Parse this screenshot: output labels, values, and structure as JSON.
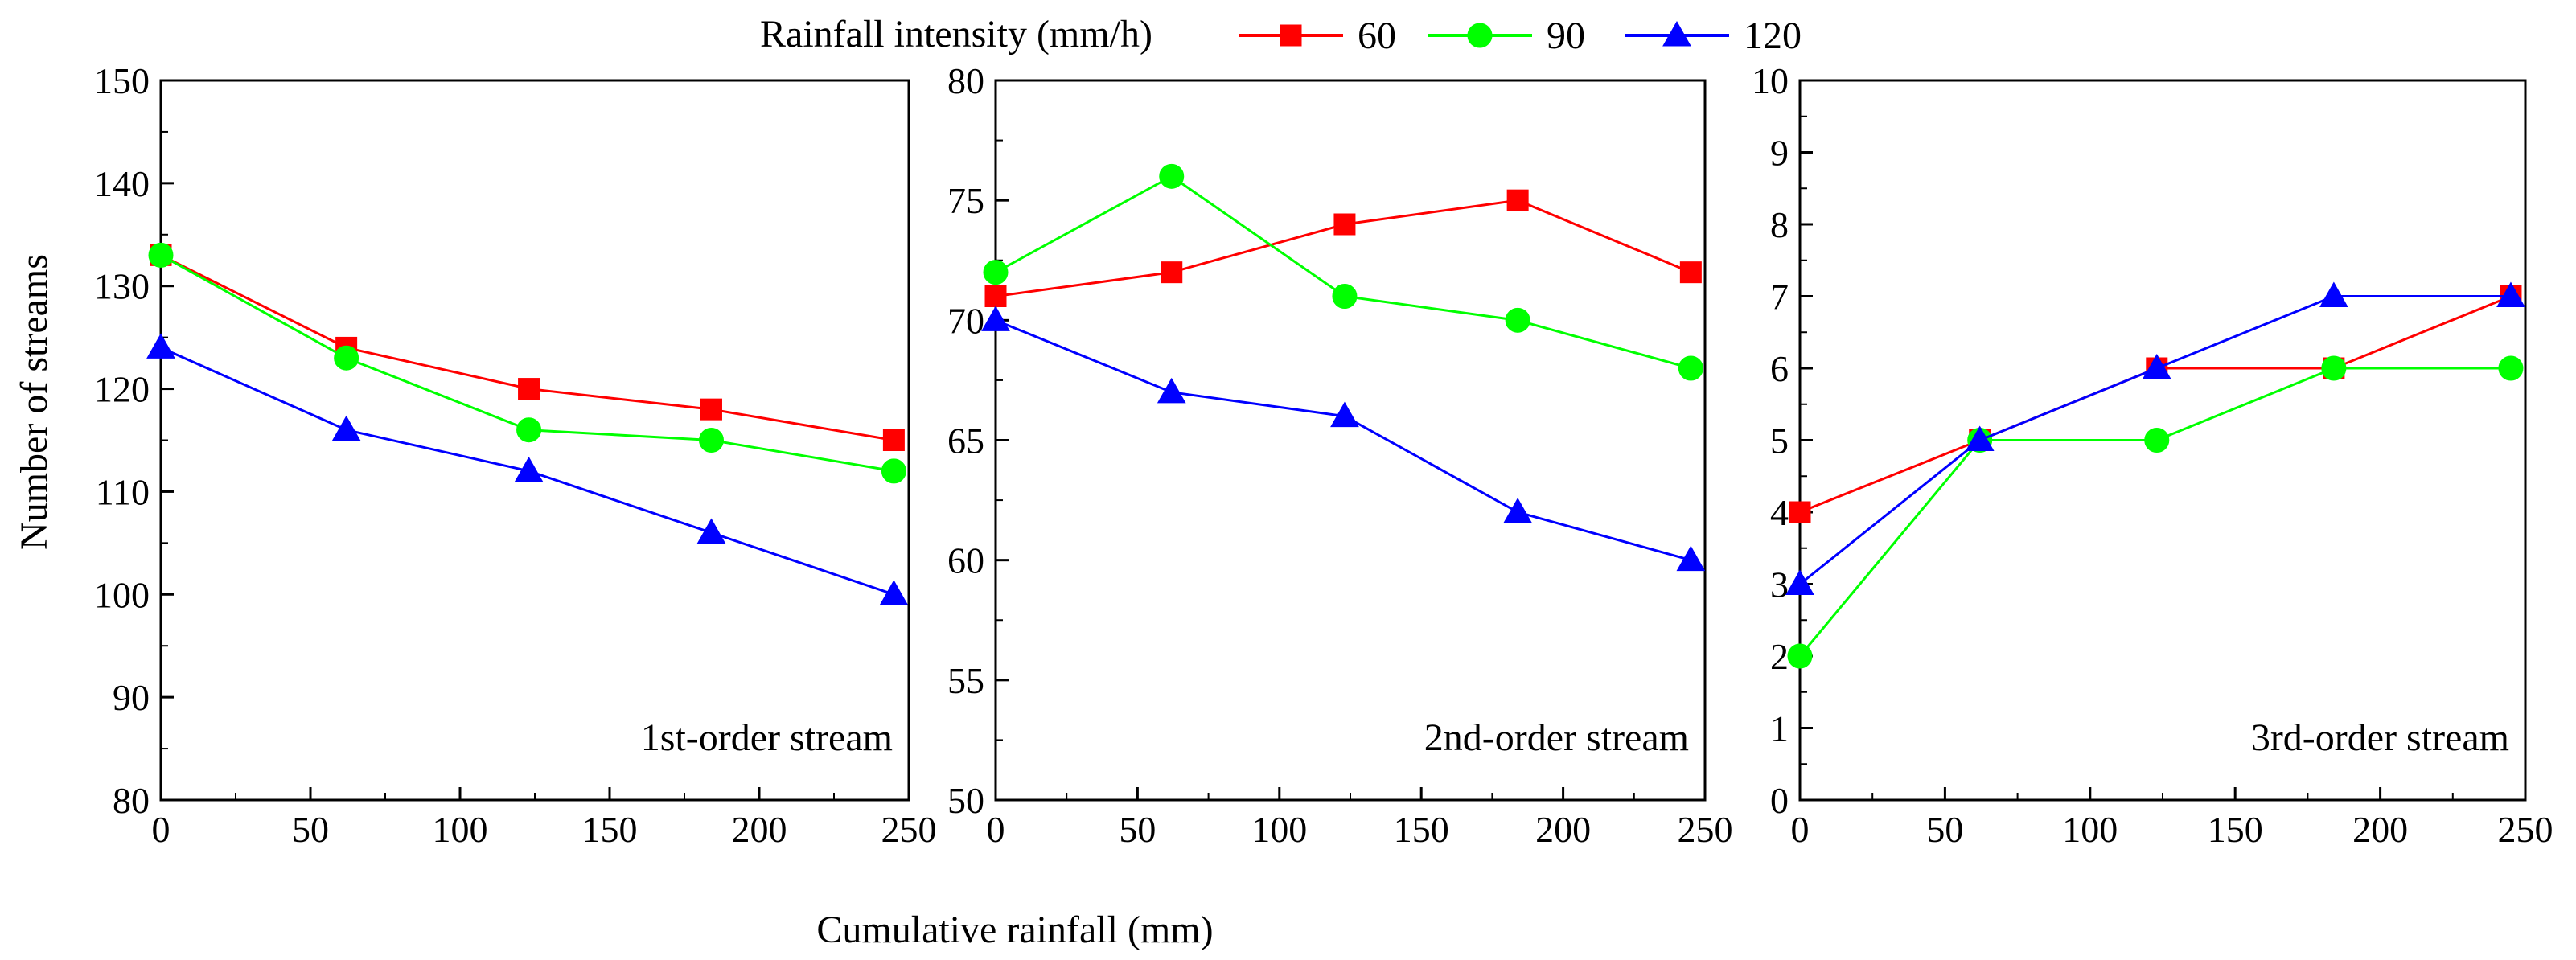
{
  "figure": {
    "shared_ylabel": "Number of streams",
    "shared_xlabel": "Cumulative rainfall (mm)",
    "legend_title": "Rainfall intensity (mm/h)"
  },
  "series_style": [
    {
      "name": "60",
      "color": "#ff0000",
      "marker": "square"
    },
    {
      "name": "90",
      "color": "#00ff00",
      "marker": "circle"
    },
    {
      "name": "120",
      "color": "#0000ff",
      "marker": "triangle"
    }
  ],
  "chart_data": [
    {
      "type": "line",
      "annotation": "1st-order stream",
      "xlabel": "Cumulative rainfall (mm)",
      "ylabel": "Number of streams",
      "xlim": [
        0,
        250
      ],
      "ylim": [
        80,
        150
      ],
      "xticks": [
        0,
        50,
        100,
        150,
        200,
        250
      ],
      "yticks": [
        80,
        90,
        100,
        110,
        120,
        130,
        140,
        150
      ],
      "grid": false,
      "x": [
        0,
        62,
        123,
        184,
        245
      ],
      "series": [
        {
          "name": "60",
          "values": [
            133,
            124,
            120,
            118,
            115
          ]
        },
        {
          "name": "90",
          "values": [
            133,
            123,
            116,
            115,
            112
          ]
        },
        {
          "name": "120",
          "values": [
            124,
            116,
            112,
            106,
            100
          ]
        }
      ]
    },
    {
      "type": "line",
      "annotation": "2nd-order stream",
      "xlabel": "Cumulative rainfall (mm)",
      "ylabel": "Number of streams",
      "xlim": [
        0,
        250
      ],
      "ylim": [
        50,
        80
      ],
      "xticks": [
        0,
        50,
        100,
        150,
        200,
        250
      ],
      "yticks": [
        50,
        55,
        60,
        65,
        70,
        75,
        80
      ],
      "grid": false,
      "x": [
        0,
        62,
        123,
        184,
        245
      ],
      "series": [
        {
          "name": "60",
          "values": [
            71,
            72,
            74,
            75,
            72
          ]
        },
        {
          "name": "90",
          "values": [
            72,
            76,
            71,
            70,
            68
          ]
        },
        {
          "name": "120",
          "values": [
            70,
            67,
            66,
            62,
            60
          ]
        }
      ]
    },
    {
      "type": "line",
      "annotation": "3rd-order stream",
      "xlabel": "Cumulative rainfall (mm)",
      "ylabel": "Number of streams",
      "xlim": [
        0,
        250
      ],
      "ylim": [
        0,
        10
      ],
      "xticks": [
        0,
        50,
        100,
        150,
        200,
        250
      ],
      "yticks": [
        0,
        1,
        2,
        3,
        4,
        5,
        6,
        7,
        8,
        9,
        10
      ],
      "grid": false,
      "x": [
        0,
        62,
        123,
        184,
        245
      ],
      "series": [
        {
          "name": "60",
          "values": [
            4,
            5,
            6,
            6,
            7
          ]
        },
        {
          "name": "90",
          "values": [
            2,
            5,
            5,
            6,
            6
          ]
        },
        {
          "name": "120",
          "values": [
            3,
            5,
            6,
            7,
            7
          ]
        }
      ]
    }
  ]
}
